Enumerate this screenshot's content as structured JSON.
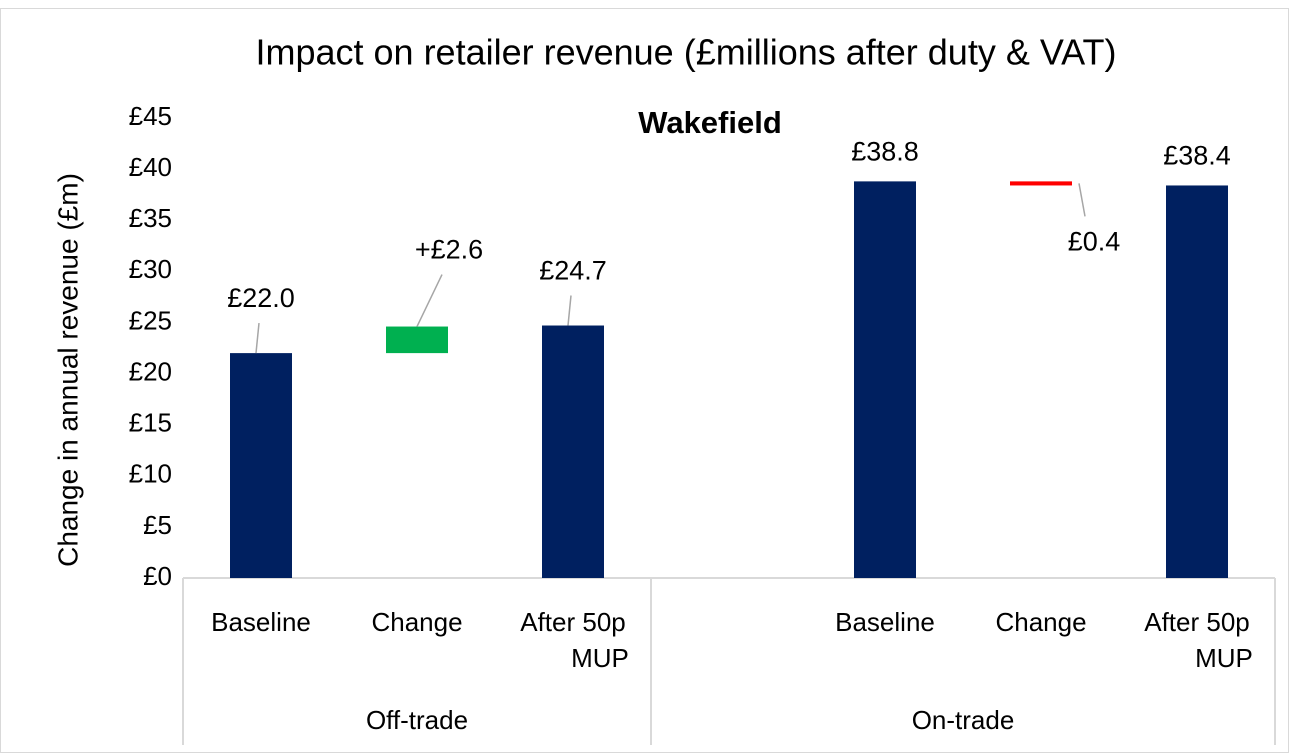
{
  "chart_data": {
    "type": "waterfall",
    "title": "Impact on retailer revenue (£millions after duty & VAT)",
    "subtitle": "Wakefield",
    "y_label": "Change in annual revenue (£m)",
    "categories": [
      "Baseline",
      "Change",
      "After 50p MUP",
      null,
      "Baseline",
      "Change",
      "After 50p MUP"
    ],
    "groups": [
      {
        "label": "Off-trade",
        "span": 3
      },
      {
        "label": "On-trade",
        "span": 4
      }
    ],
    "measures": [
      "absolute",
      "relative",
      "absolute",
      null,
      "absolute",
      "relative",
      "absolute"
    ],
    "values": [
      22.0,
      2.6,
      24.7,
      null,
      38.8,
      -0.4,
      38.4
    ],
    "value_labels": [
      "£22.0",
      "+£2.6",
      "£24.7",
      null,
      "£38.8",
      "£0.4",
      "£38.4"
    ],
    "colors": {
      "total": "#002060",
      "increase": "#00b050",
      "decrease": "#ff0000"
    },
    "ylim": [
      0,
      45
    ],
    "yticks": [
      {
        "value": 0,
        "label": "£0"
      },
      {
        "value": 5,
        "label": "£5"
      },
      {
        "value": 10,
        "label": "£10"
      },
      {
        "value": 15,
        "label": "£15"
      },
      {
        "value": 20,
        "label": "£20"
      },
      {
        "value": 25,
        "label": "£25"
      },
      {
        "value": 30,
        "label": "£30"
      },
      {
        "value": 35,
        "label": "£35"
      },
      {
        "value": 40,
        "label": "£40"
      },
      {
        "value": 45,
        "label": "£45"
      }
    ],
    "grid": false
  }
}
